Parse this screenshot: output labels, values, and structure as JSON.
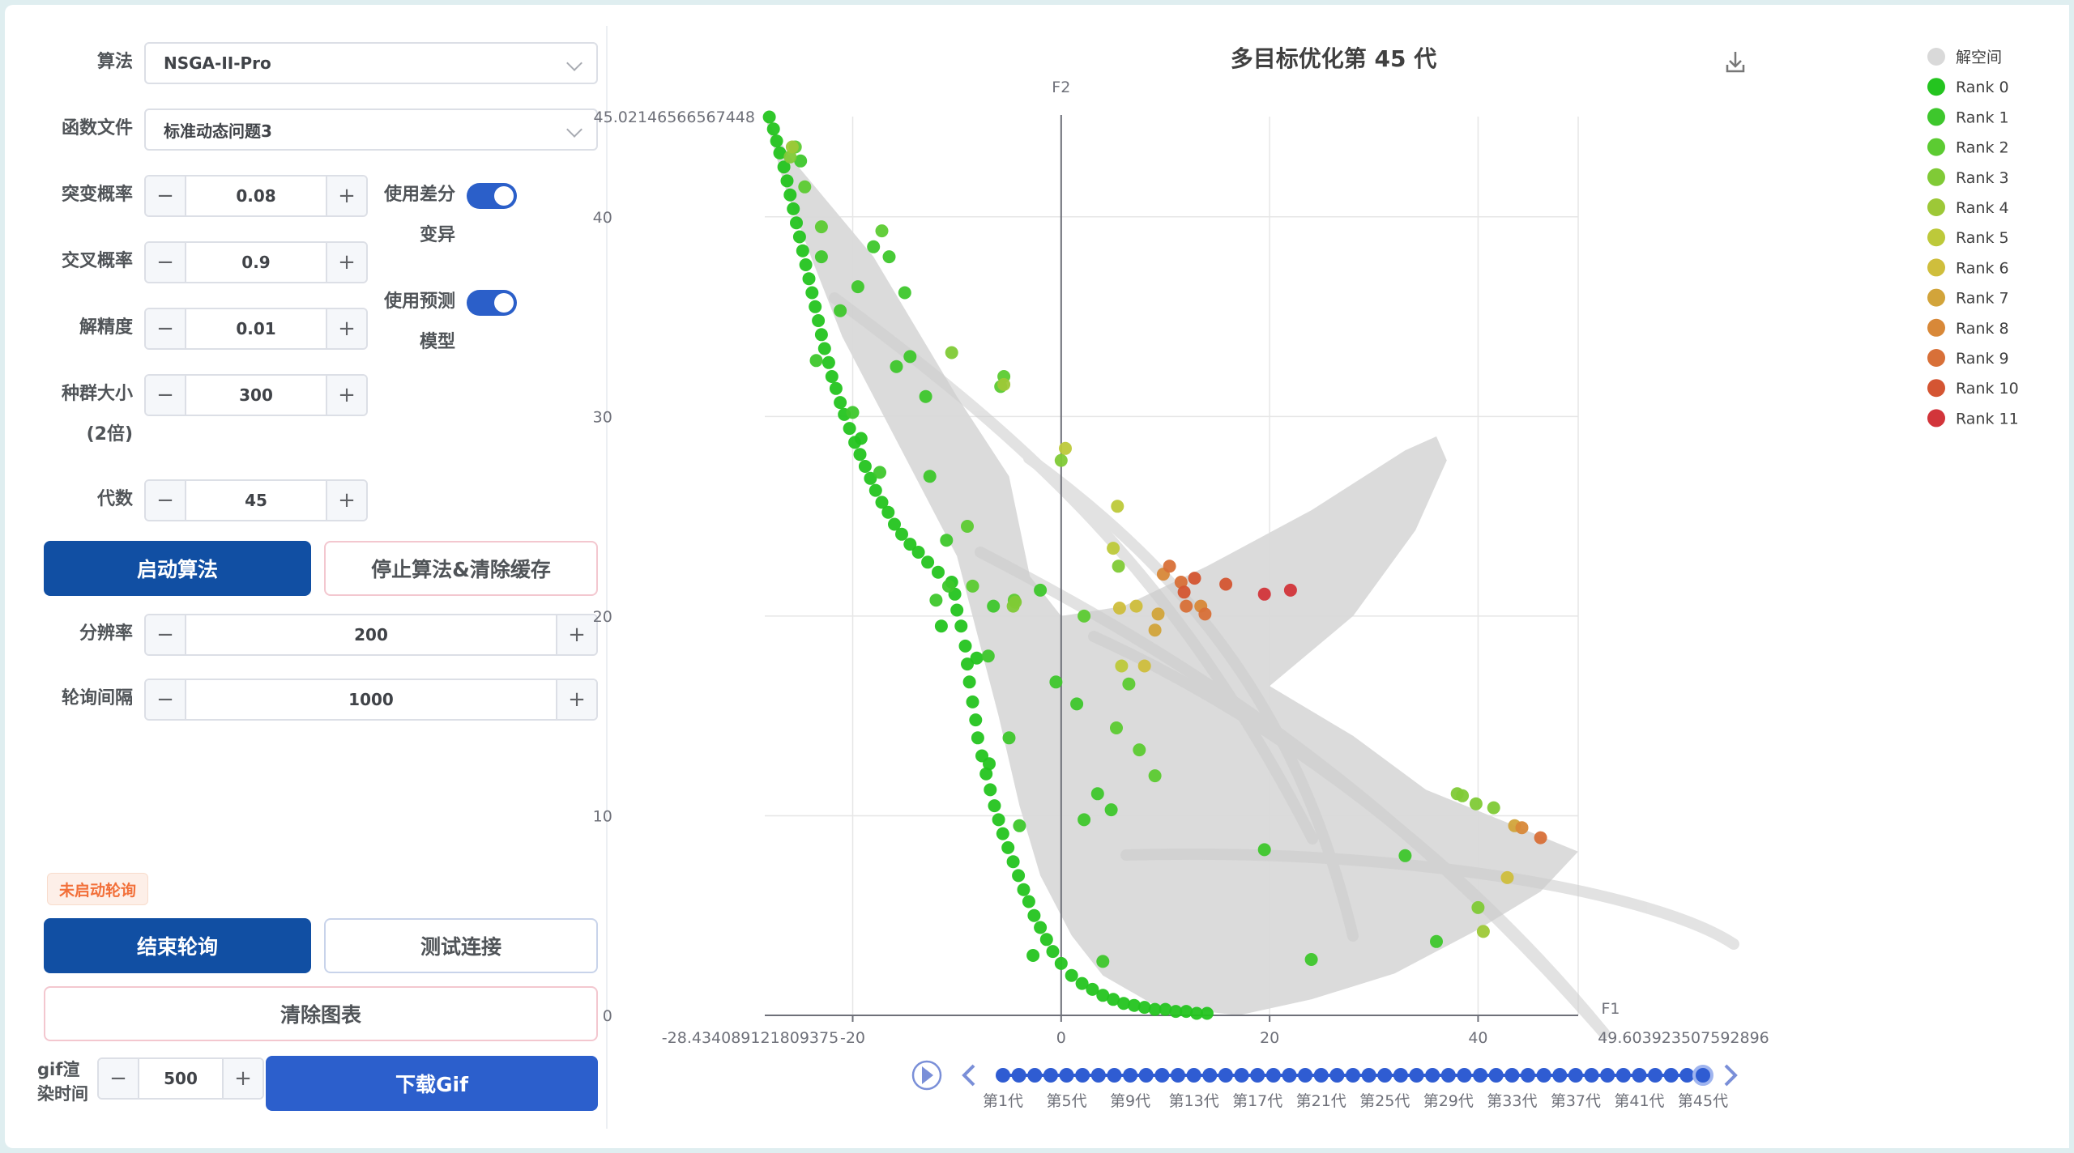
{
  "form": {
    "algorithm": {
      "label": "算法",
      "value": "NSGA-II-Pro"
    },
    "function_file": {
      "label": "函数文件",
      "value": "标准动态问题3"
    },
    "mutation": {
      "label": "突变概率",
      "value": "0.08"
    },
    "crossover": {
      "label": "交叉概率",
      "value": "0.9"
    },
    "precision": {
      "label": "解精度",
      "value": "0.01"
    },
    "population": {
      "label_line1": "种群大小",
      "label_line2": "(2倍)",
      "value": "300"
    },
    "generations": {
      "label": "代数",
      "value": "45"
    },
    "diff_mutation": {
      "label_line1": "使用差分",
      "label_line2": "变异",
      "on": true
    },
    "predict_model": {
      "label_line1": "使用预测",
      "label_line2": "模型",
      "on": true
    },
    "resolution": {
      "label": "分辨率",
      "value": "200"
    },
    "poll_interval": {
      "label": "轮询间隔",
      "value": "1000"
    },
    "gif_time": {
      "label_line1": "gif渲",
      "label_line2": "染时间",
      "value": "500"
    },
    "minus": "−",
    "plus": "+"
  },
  "buttons": {
    "start": "启动算法",
    "stop": "停止算法&清除缓存",
    "end_poll": "结束轮询",
    "test_conn": "测试连接",
    "clear_chart": "清除图表",
    "download_gif": "下载Gif"
  },
  "status_tag": "未启动轮询",
  "colors": {
    "primary": "#114fa3",
    "primary2": "#2c5fcc",
    "switch": "#2b5fc9",
    "space": "#d9d9d9"
  },
  "chart_data": {
    "type": "scatter",
    "title": "多目标优化第 45 代",
    "xlabel": "F1",
    "ylabel": "F2",
    "xlim": [
      -28.434089121809375,
      49.603923507592896
    ],
    "ylim": [
      0,
      45.02146566567448
    ],
    "x_min_label": "-28.434089121809375",
    "x_max_label": "49.603923507592896",
    "y_max_label": "45.02146566567448",
    "x_ticks": [
      -20,
      0,
      20,
      40
    ],
    "y_ticks": [
      0,
      10,
      20,
      30,
      40
    ],
    "grid": true,
    "legend_position": "right",
    "legend": [
      {
        "name": "解空间",
        "color": "#d9d9d9"
      },
      {
        "name": "Rank 0",
        "color": "#24c41f"
      },
      {
        "name": "Rank 1",
        "color": "#3ec72c"
      },
      {
        "name": "Rank 2",
        "color": "#5ccb32"
      },
      {
        "name": "Rank 3",
        "color": "#80ca36"
      },
      {
        "name": "Rank 4",
        "color": "#9dc837"
      },
      {
        "name": "Rank 5",
        "color": "#bdc93a"
      },
      {
        "name": "Rank 6",
        "color": "#cfbe3c"
      },
      {
        "name": "Rank 7",
        "color": "#d2a43a"
      },
      {
        "name": "Rank 8",
        "color": "#d88838"
      },
      {
        "name": "Rank 9",
        "color": "#d87038"
      },
      {
        "name": "Rank 10",
        "color": "#d45532"
      },
      {
        "name": "Rank 11",
        "color": "#d2353a"
      }
    ],
    "space_outline": [
      [
        -28.4,
        45
      ],
      [
        -26,
        43
      ],
      [
        -18,
        38
      ],
      [
        -10,
        31
      ],
      [
        -5,
        27
      ],
      [
        -3,
        22
      ],
      [
        0,
        20
      ],
      [
        6,
        20.5
      ],
      [
        14,
        22.5
      ],
      [
        24,
        25.3
      ],
      [
        33,
        28.3
      ],
      [
        36,
        29
      ],
      [
        37,
        27.8
      ],
      [
        34,
        24.3
      ],
      [
        28,
        20
      ],
      [
        20,
        16.5
      ],
      [
        28,
        14
      ],
      [
        35,
        11.3
      ],
      [
        44,
        9.4
      ],
      [
        49.6,
        8.2
      ],
      [
        46,
        6.2
      ],
      [
        40,
        4.3
      ],
      [
        32,
        2.1
      ],
      [
        24,
        0.8
      ],
      [
        17,
        0
      ],
      [
        9,
        0.5
      ],
      [
        4,
        2
      ],
      [
        1,
        4
      ],
      [
        -2,
        7
      ],
      [
        -4,
        10.5
      ],
      [
        -6,
        15
      ],
      [
        -8,
        19
      ],
      [
        -10,
        23
      ],
      [
        -13,
        26
      ],
      [
        -17,
        30
      ],
      [
        -21,
        34
      ],
      [
        -24,
        38
      ],
      [
        -26.5,
        41.5
      ]
    ],
    "timeline": {
      "labels": [
        "第1代",
        "第5代",
        "第9代",
        "第13代",
        "第17代",
        "第21代",
        "第25代",
        "第29代",
        "第33代",
        "第37代",
        "第41代",
        "第45代"
      ],
      "total": 45,
      "current": 45
    },
    "ranks": [
      [
        [
          -28,
          45
        ],
        [
          -27.6,
          44.4
        ],
        [
          -27.3,
          43.8
        ],
        [
          -27,
          43.2
        ],
        [
          -26.6,
          42.5
        ],
        [
          -26.3,
          41.8
        ],
        [
          -26,
          41.1
        ],
        [
          -25.7,
          40.4
        ],
        [
          -25.4,
          39.7
        ],
        [
          -25.1,
          39
        ],
        [
          -24.8,
          38.3
        ],
        [
          -24.5,
          37.6
        ],
        [
          -24.2,
          36.9
        ],
        [
          -23.9,
          36.2
        ],
        [
          -23.6,
          35.5
        ],
        [
          -23.3,
          34.8
        ],
        [
          -23,
          34.1
        ],
        [
          -22.7,
          33.4
        ],
        [
          -22.3,
          32.7
        ],
        [
          -22,
          32
        ],
        [
          -21.6,
          31.4
        ],
        [
          -21.2,
          30.7
        ],
        [
          -20.8,
          30.1
        ],
        [
          -20.3,
          29.4
        ],
        [
          -19.8,
          28.7
        ],
        [
          -19.3,
          28.1
        ],
        [
          -18.8,
          27.5
        ],
        [
          -18.3,
          26.9
        ],
        [
          -17.8,
          26.3
        ],
        [
          -17.2,
          25.7
        ],
        [
          -16.6,
          25.2
        ],
        [
          -16,
          24.6
        ],
        [
          -15.3,
          24.1
        ],
        [
          -14.5,
          23.6
        ],
        [
          -13.7,
          23.2
        ],
        [
          -12.8,
          22.7
        ],
        [
          -11.8,
          22.2
        ],
        [
          -10.5,
          21.7
        ],
        [
          -10.2,
          21.1
        ],
        [
          -10,
          20.3
        ],
        [
          -9.6,
          19.5
        ],
        [
          -9.2,
          18.5
        ],
        [
          -9,
          17.6
        ],
        [
          -8.8,
          16.7
        ],
        [
          -8.5,
          15.7
        ],
        [
          -8.2,
          14.8
        ],
        [
          -8,
          13.9
        ],
        [
          -7.6,
          13
        ],
        [
          -7.2,
          12.1
        ],
        [
          -6.8,
          11.3
        ],
        [
          -6.4,
          10.5
        ],
        [
          -6,
          9.8
        ],
        [
          -5.6,
          9.1
        ],
        [
          -5.1,
          8.4
        ],
        [
          -4.6,
          7.7
        ],
        [
          -4.1,
          7
        ],
        [
          -3.6,
          6.3
        ],
        [
          -3.1,
          5.7
        ],
        [
          -2.6,
          5
        ],
        [
          -2,
          4.4
        ],
        [
          -1.4,
          3.8
        ],
        [
          -0.8,
          3.2
        ],
        [
          0,
          2.6
        ],
        [
          1,
          2
        ],
        [
          2,
          1.6
        ],
        [
          3,
          1.3
        ],
        [
          4,
          1
        ],
        [
          5,
          0.8
        ],
        [
          6,
          0.6
        ],
        [
          7,
          0.5
        ],
        [
          8,
          0.4
        ],
        [
          9,
          0.3
        ],
        [
          10,
          0.3
        ],
        [
          11,
          0.2
        ],
        [
          12,
          0.2
        ],
        [
          13,
          0.1
        ],
        [
          14,
          0.1
        ],
        [
          -8.1,
          17.9
        ],
        [
          -6.9,
          12.6
        ],
        [
          -19.2,
          28.9
        ],
        [
          -2.7,
          3
        ],
        [
          -11.5,
          19.5
        ]
      ],
      [
        [
          -23,
          38
        ],
        [
          -19.5,
          36.5
        ],
        [
          -18,
          38.5
        ],
        [
          -16.5,
          38
        ],
        [
          -15,
          36.2
        ],
        [
          -14.5,
          33
        ],
        [
          -23.5,
          32.8
        ],
        [
          -20,
          30.2
        ],
        [
          -13,
          31
        ],
        [
          -17.4,
          27.2
        ],
        [
          -12.6,
          27
        ],
        [
          -11,
          23.8
        ],
        [
          -2,
          21.3
        ],
        [
          -6.5,
          20.5
        ],
        [
          -0.5,
          16.7
        ],
        [
          1.5,
          15.6
        ],
        [
          3.5,
          11.1
        ],
        [
          4.8,
          10.3
        ],
        [
          -5,
          13.9
        ],
        [
          4,
          2.7
        ],
        [
          -4,
          9.5
        ],
        [
          -7,
          18
        ],
        [
          -12,
          20.8
        ],
        [
          -10.8,
          21.5
        ],
        [
          2.2,
          9.8
        ],
        [
          19.5,
          8.3
        ],
        [
          24,
          2.8
        ],
        [
          33,
          8
        ],
        [
          36,
          3.7
        ],
        [
          -25,
          42.8
        ],
        [
          -21.2,
          35.3
        ],
        [
          -15.8,
          32.5
        ]
      ],
      [
        [
          -24.6,
          41.5
        ],
        [
          -25.5,
          43.5
        ],
        [
          -17.2,
          39.3
        ],
        [
          -23,
          39.5
        ],
        [
          -9,
          24.5
        ],
        [
          -5.8,
          31.5
        ],
        [
          -5.5,
          32
        ],
        [
          -4.5,
          20.8
        ],
        [
          2.2,
          20
        ],
        [
          5.3,
          14.4
        ],
        [
          6.5,
          16.6
        ],
        [
          7.5,
          13.3
        ],
        [
          9,
          12
        ],
        [
          -8.5,
          21.5
        ]
      ],
      [
        [
          -26,
          43
        ],
        [
          -10.5,
          33.2
        ],
        [
          -4.6,
          20.5
        ],
        [
          -4.4,
          20.7
        ],
        [
          0,
          27.8
        ],
        [
          5.5,
          22.5
        ],
        [
          38.5,
          11
        ],
        [
          39.8,
          10.6
        ],
        [
          41.5,
          10.4
        ],
        [
          38,
          11.1
        ],
        [
          40,
          5.4
        ]
      ],
      [
        [
          -25.8,
          43.5
        ],
        [
          40.5,
          4.2
        ],
        [
          -5.5,
          31.6
        ]
      ],
      [
        [
          0.4,
          28.4
        ],
        [
          5,
          23.4
        ],
        [
          5.4,
          25.5
        ],
        [
          5.8,
          17.5
        ]
      ],
      [
        [
          5.6,
          20.4
        ],
        [
          7.2,
          20.5
        ],
        [
          8,
          17.5
        ],
        [
          42.8,
          6.9
        ]
      ],
      [
        [
          9,
          19.3
        ],
        [
          9.3,
          20.1
        ],
        [
          43.5,
          9.5
        ]
      ],
      [
        [
          9.8,
          22.1
        ],
        [
          13.4,
          20.5
        ],
        [
          44.2,
          9.4
        ]
      ],
      [
        [
          10.4,
          22.5
        ],
        [
          12,
          20.5
        ],
        [
          11.5,
          21.7
        ],
        [
          13.8,
          20.1
        ],
        [
          46,
          8.9
        ]
      ],
      [
        [
          12.8,
          21.9
        ],
        [
          11.8,
          21.2
        ],
        [
          15.8,
          21.6
        ]
      ],
      [
        [
          19.5,
          21.1
        ],
        [
          22,
          21.3
        ]
      ]
    ]
  }
}
